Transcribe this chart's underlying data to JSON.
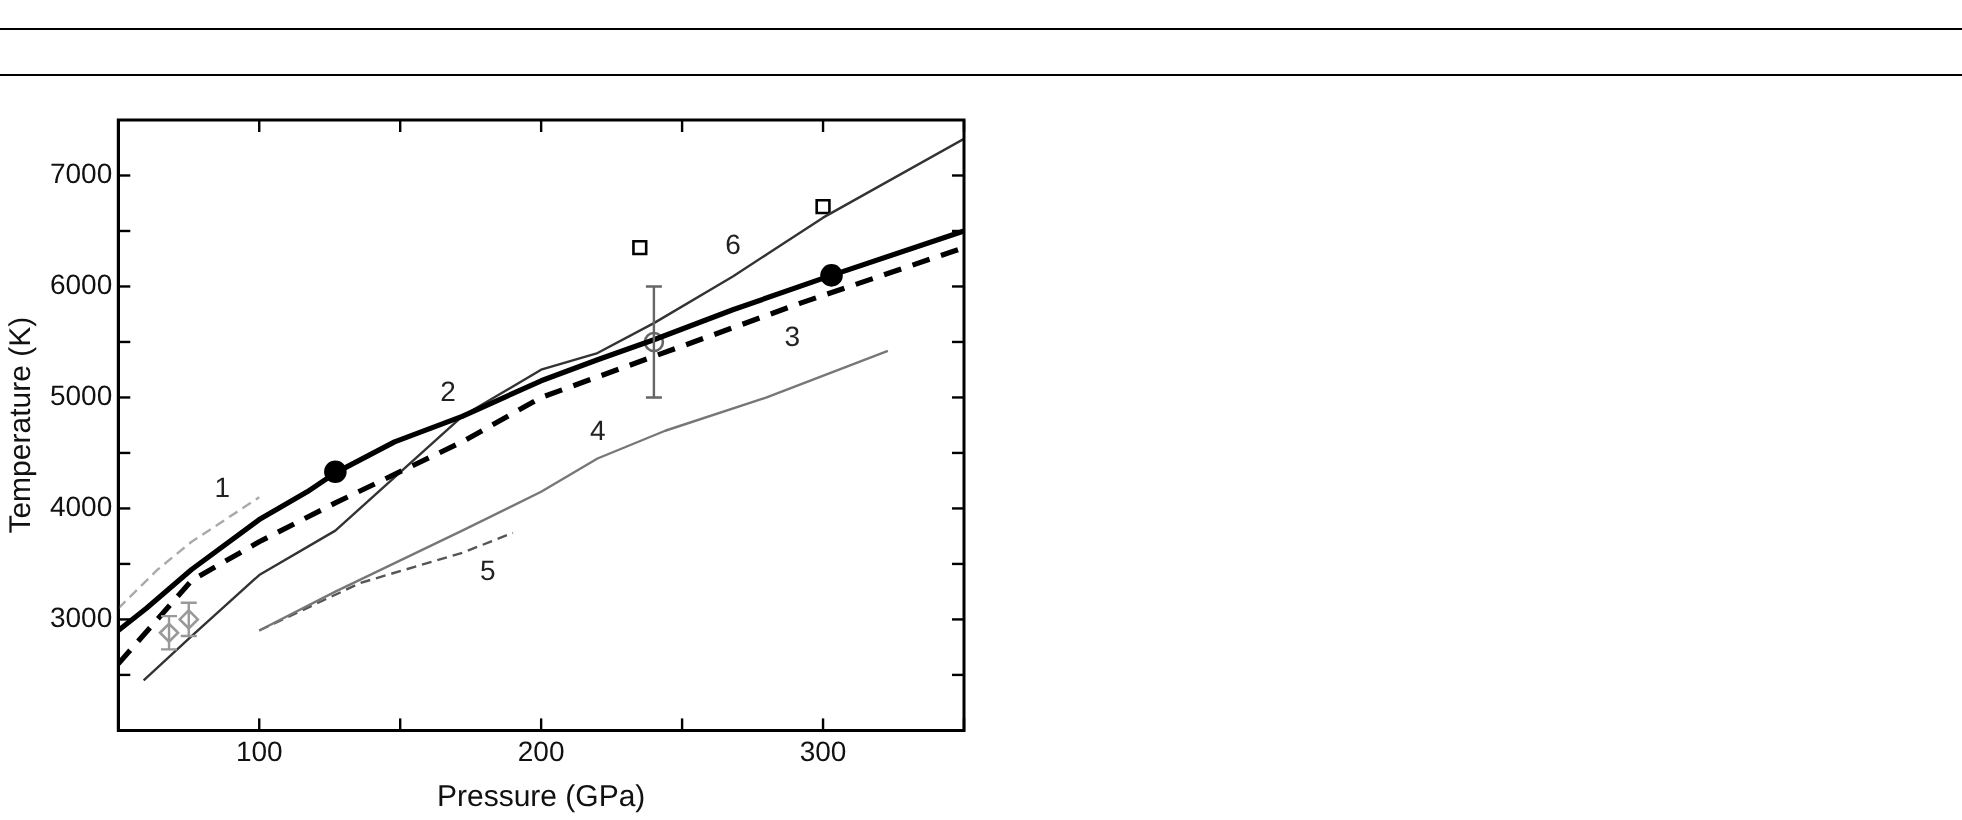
{
  "chart_data": {
    "type": "line",
    "xlabel": "Pressure (GPa)",
    "ylabel": "Temperature (K)",
    "xlim": [
      50,
      350
    ],
    "xticks": [
      {
        "value": 50,
        "label": null
      },
      100,
      {
        "value": 150,
        "label": null
      },
      200,
      {
        "value": 250,
        "label": null
      },
      300,
      {
        "value": 350,
        "label": null
      }
    ],
    "ylim": [
      2000,
      7500
    ],
    "yticks": [
      {
        "value": 2500,
        "label": null
      },
      3000,
      {
        "value": 3500,
        "label": null
      },
      4000,
      {
        "value": 4500,
        "label": null
      },
      5000,
      {
        "value": 5500,
        "label": null
      },
      6000,
      {
        "value": 6500,
        "label": null
      },
      7000
    ],
    "grid": false,
    "legend": false,
    "series": [
      {
        "name": "1",
        "color": "#aaaaaa",
        "line_style": "dashed",
        "marker": "none",
        "x": [
          50,
          64,
          76,
          100
        ],
        "values": [
          3100,
          3450,
          3700,
          4100
        ]
      },
      {
        "name": "2",
        "color": "#000000",
        "line_style": "solid",
        "marker": "none",
        "x": [
          50,
          60,
          76,
          100,
          117,
          127,
          148,
          172,
          200,
          220,
          240,
          268,
          303,
          350
        ],
        "values": [
          2900,
          3100,
          3450,
          3900,
          4150,
          4320,
          4600,
          4830,
          5150,
          5340,
          5520,
          5790,
          6100,
          6500
        ]
      },
      {
        "name": "3",
        "color": "#000000",
        "line_style": "dashed",
        "marker": "none",
        "x": [
          50,
          76,
          100,
          127,
          172,
          200,
          240,
          292,
          350
        ],
        "values": [
          2600,
          3350,
          3700,
          4050,
          4600,
          5000,
          5370,
          5850,
          6350
        ]
      },
      {
        "name": "4",
        "color": "#777777",
        "line_style": "solid",
        "marker": "none",
        "x": [
          100,
          127,
          172,
          200,
          220,
          244,
          280,
          323
        ],
        "values": [
          2900,
          3250,
          3800,
          4150,
          4450,
          4700,
          5000,
          5420
        ]
      },
      {
        "name": "5",
        "color": "#555555",
        "line_style": "dashed",
        "marker": "none",
        "x": [
          100,
          136,
          172,
          190
        ],
        "values": [
          2900,
          3330,
          3600,
          3780
        ]
      },
      {
        "name": "6",
        "color": "#333333",
        "line_style": "solid",
        "marker": "none",
        "x": [
          59,
          76,
          100,
          127,
          172,
          200,
          220,
          240,
          268,
          300,
          350
        ],
        "values": [
          2450,
          2850,
          3400,
          3800,
          4830,
          5250,
          5400,
          5670,
          6090,
          6620,
          7330
        ]
      },
      {
        "type": "scatter",
        "color": "#000000",
        "marker": "circle",
        "x": [
          127,
          303
        ],
        "values": [
          4330,
          6100
        ]
      },
      {
        "type": "scatter",
        "color": "#000000",
        "marker": "square",
        "x": [
          235,
          300
        ],
        "values": [
          6350,
          6720
        ]
      },
      {
        "type": "scatter",
        "color": "#666666",
        "marker": "circle",
        "x": [
          240
        ],
        "values": [
          5500
        ],
        "errors": [
          500
        ]
      },
      {
        "type": "scatter",
        "color": "#999999",
        "marker": "diamond",
        "x": [
          68,
          75
        ],
        "values": [
          2880,
          3000
        ],
        "errors": [
          150,
          150
        ]
      }
    ]
  }
}
